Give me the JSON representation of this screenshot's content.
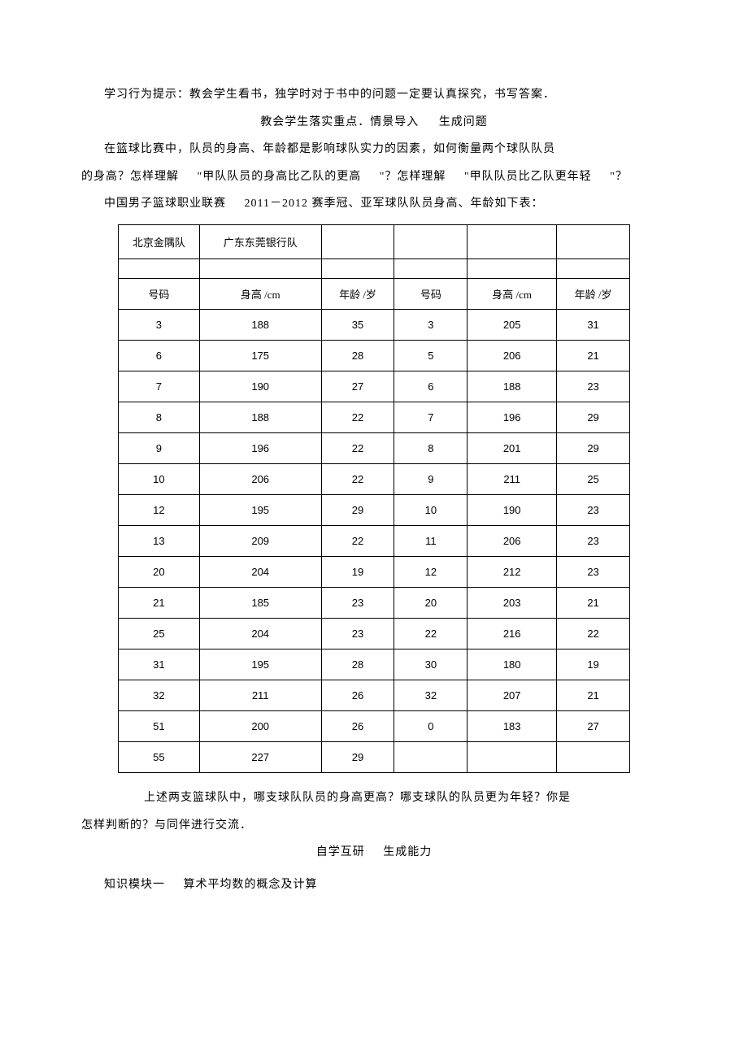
{
  "paragraphs": {
    "p1": "学习行为提示：教会学生看书，独学时对于书中的问题一定要认真探究，书写答案．",
    "p2_a": "教会学生落实重点．情景导入",
    "p2_b": "生成问题",
    "p3": "在篮球比赛中，队员的身高、年龄都是影响球队实力的因素，如何衡量两个球队队员",
    "p4_a": "的身高？怎样理解",
    "p4_b": "\"甲队队员的身高比乙队的更高",
    "p4_c": "\"？怎样理解",
    "p4_d": "\"甲队队员比乙队更年轻",
    "p4_e": "\"？",
    "p5_a": "中国男子篮球职业联赛",
    "p5_b": "2011－2012 赛季冠、亚军球队队员身高、年龄如下表：",
    "p6": "上述两支篮球队中，哪支球队队员的身高更高？哪支球队的队员更为年轻？你是",
    "p7": "怎样判断的？与同伴进行交流．",
    "p8_a": "自学互研",
    "p8_b": "生成能力",
    "p9_a": "知识模块一",
    "p9_b": "算术平均数的概念及计算"
  },
  "table": {
    "team_headers": [
      "北京金隅队",
      "广东东莞银行队"
    ],
    "col_headers": [
      "号码",
      "身高 /cm",
      "年龄 /岁",
      "号码",
      "身高 /cm",
      "年龄 /岁"
    ],
    "rows": [
      [
        "3",
        "188",
        "35",
        "3",
        "205",
        "31"
      ],
      [
        "6",
        "175",
        "28",
        "5",
        "206",
        "21"
      ],
      [
        "7",
        "190",
        "27",
        "6",
        "188",
        "23"
      ],
      [
        "8",
        "188",
        "22",
        "7",
        "196",
        "29"
      ],
      [
        "9",
        "196",
        "22",
        "8",
        "201",
        "29"
      ],
      [
        "10",
        "206",
        "22",
        "9",
        "211",
        "25"
      ],
      [
        "12",
        "195",
        "29",
        "10",
        "190",
        "23"
      ],
      [
        "13",
        "209",
        "22",
        "11",
        "206",
        "23"
      ],
      [
        "20",
        "204",
        "19",
        "12",
        "212",
        "23"
      ],
      [
        "21",
        "185",
        "23",
        "20",
        "203",
        "21"
      ],
      [
        "25",
        "204",
        "23",
        "22",
        "216",
        "22"
      ],
      [
        "31",
        "195",
        "28",
        "30",
        "180",
        "19"
      ],
      [
        "32",
        "211",
        "26",
        "32",
        "207",
        "21"
      ],
      [
        "51",
        "200",
        "26",
        "0",
        "183",
        "27"
      ],
      [
        "55",
        "227",
        "29",
        "",
        "",
        ""
      ]
    ]
  }
}
